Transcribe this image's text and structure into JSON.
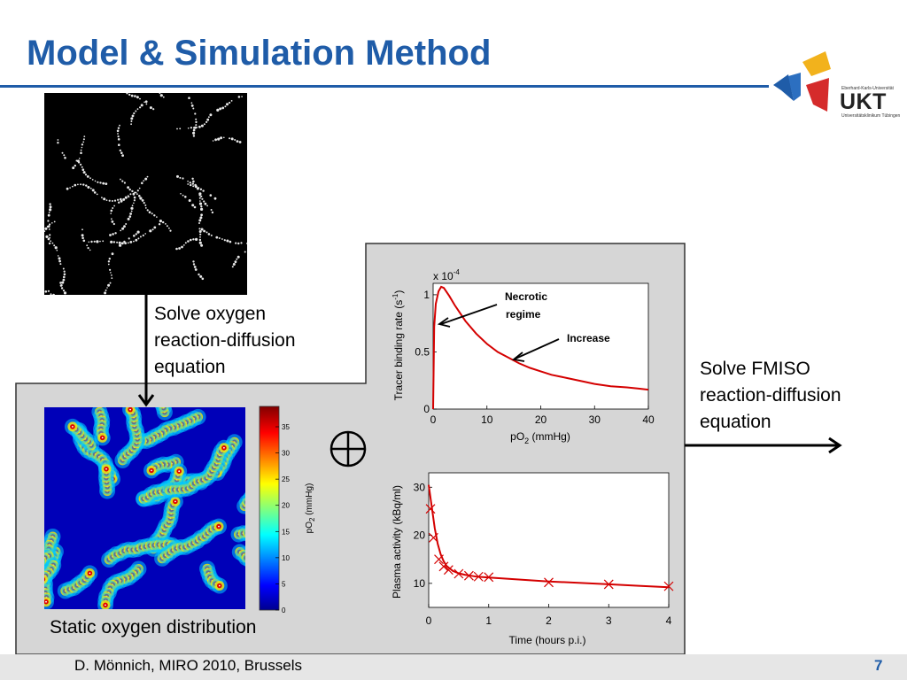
{
  "slide": {
    "title": "Model & Simulation Method",
    "footer_left": "D. Mönnich, MIRO 2010, Brussels",
    "page_number": "7"
  },
  "logo": {
    "small_top": "Eberhard-Karls-Universität",
    "name": "UKT",
    "small_bottom": "Universitätsklinikum Tübingen",
    "colors": [
      "#1f5ca8",
      "#f2b21c",
      "#d52b2b"
    ]
  },
  "left": {
    "step1_text": "Solve oxygen\nreaction-diffusion\nequation",
    "caption": "Static oxygen distribution",
    "colorbar": {
      "label_main": "pO",
      "label_sub": "2",
      "label_unit": " (mmHg)",
      "ticks": [
        "0",
        "5",
        "10",
        "15",
        "20",
        "25",
        "30",
        "35"
      ]
    }
  },
  "right": {
    "step2_text": "Solve FMISO\nreaction-diffusion\nequation"
  },
  "chart_data": [
    {
      "type": "line",
      "ylabel_main": "Tracer binding rate (s",
      "ylabel_sup": "-1",
      "ylabel_end": ")",
      "xlabel_main": "pO",
      "xlabel_sub": "2",
      "xlabel_end": " (mmHg)",
      "multiplier_main": "x 10",
      "multiplier_sup": "-4",
      "xlim": [
        0,
        40
      ],
      "ylim": [
        0,
        1.1
      ],
      "xticks": [
        "0",
        "10",
        "20",
        "30",
        "40"
      ],
      "yticks": [
        "0",
        "0.5",
        "1"
      ],
      "grid": false,
      "series": [
        {
          "color": "#d40000",
          "x": [
            0,
            0.2,
            0.5,
            1,
            1.5,
            2,
            3,
            4,
            5,
            6,
            8,
            10,
            12,
            14,
            16,
            18,
            20,
            22,
            25,
            28,
            30,
            33,
            36,
            38,
            40
          ],
          "y": [
            0.0,
            0.72,
            0.92,
            1.03,
            1.07,
            1.06,
            0.99,
            0.91,
            0.84,
            0.77,
            0.66,
            0.57,
            0.5,
            0.45,
            0.4,
            0.36,
            0.33,
            0.3,
            0.27,
            0.24,
            0.22,
            0.2,
            0.19,
            0.18,
            0.17
          ]
        }
      ],
      "annotations": [
        {
          "text_line1": "Necrotic",
          "text_line2": "regime"
        },
        {
          "text_line1": "Increase",
          "text_line2": ""
        }
      ]
    },
    {
      "type": "line",
      "ylabel": "Plasma activity (kBq/ml)",
      "xlabel": "Time (hours p.i.)",
      "xlim": [
        0,
        4
      ],
      "ylim": [
        5,
        33
      ],
      "xticks": [
        "0",
        "1",
        "2",
        "3",
        "4"
      ],
      "yticks": [
        "10",
        "20",
        "30"
      ],
      "grid": false,
      "fit_curve": {
        "color": "#d40000",
        "x": [
          0,
          0.05,
          0.1,
          0.15,
          0.2,
          0.25,
          0.3,
          0.4,
          0.5,
          0.6,
          0.7,
          0.8,
          1.0,
          1.5,
          2.0,
          2.5,
          3.0,
          3.5,
          4.0
        ],
        "y": [
          30.5,
          26.0,
          21.5,
          18.2,
          16.0,
          14.6,
          13.6,
          12.6,
          12.1,
          11.8,
          11.6,
          11.4,
          11.2,
          10.8,
          10.4,
          10.1,
          9.8,
          9.5,
          9.2
        ]
      },
      "markers": {
        "color": "#d40000",
        "x": [
          0.03,
          0.08,
          0.17,
          0.25,
          0.33,
          0.5,
          0.67,
          0.83,
          1.0,
          2.0,
          3.0,
          4.0
        ],
        "y": [
          25.5,
          19.5,
          15.0,
          13.5,
          12.8,
          12.0,
          11.6,
          11.4,
          11.3,
          10.2,
          9.8,
          9.4
        ]
      }
    }
  ]
}
